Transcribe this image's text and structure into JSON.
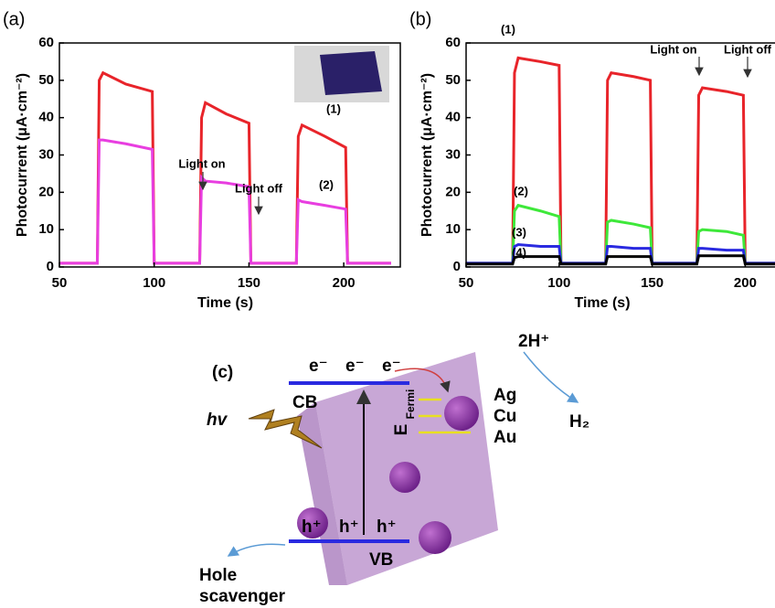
{
  "chart_data": [
    {
      "type": "line",
      "panel_label": "(a)",
      "x_label": "Time (s)",
      "y_label": "Photocurrent (μA·cm⁻²)",
      "xlim": [
        50,
        225
      ],
      "xticks": [
        50,
        100,
        150,
        200
      ],
      "ylim": [
        0,
        60
      ],
      "yticks": [
        0,
        10,
        20,
        30,
        40,
        50,
        60
      ],
      "annotations": [
        "Light on",
        "Light off"
      ],
      "x": [
        50,
        70,
        71,
        73,
        85,
        99,
        100,
        124,
        125,
        127,
        138,
        150,
        151,
        175,
        176,
        178,
        190,
        201,
        202,
        225
      ],
      "series": [
        {
          "name": "(1)",
          "color": "#e8242a",
          "values": [
            1,
            1,
            50,
            52,
            49,
            47,
            1,
            1,
            40,
            44,
            41,
            38.5,
            1,
            1,
            35,
            38,
            35,
            32,
            1,
            1
          ]
        },
        {
          "name": "(2)",
          "color": "#e83ee0",
          "values": [
            1,
            1,
            34,
            34,
            33,
            31.5,
            1,
            1,
            24,
            23,
            22.5,
            21.5,
            1,
            1,
            18,
            17.5,
            16.5,
            15.5,
            1,
            1
          ]
        }
      ]
    },
    {
      "type": "line",
      "panel_label": "(b)",
      "x_label": "Time (s)",
      "y_label": "Photocurrent (μA·cm⁻²)",
      "xlim": [
        50,
        216
      ],
      "xticks": [
        50,
        100,
        150,
        200
      ],
      "ylim": [
        0,
        60
      ],
      "yticks": [
        0,
        10,
        20,
        30,
        40,
        50,
        60
      ],
      "annotations": [
        "Light on",
        "Light off"
      ],
      "x": [
        50,
        75,
        76,
        78,
        90,
        100,
        101,
        125,
        126,
        128,
        140,
        149,
        150,
        174,
        175,
        177,
        190,
        199,
        200,
        216
      ],
      "series": [
        {
          "name": "(1)",
          "color": "#e8242a",
          "values": [
            1,
            1,
            52,
            56,
            55,
            54,
            1,
            1,
            50,
            52,
            51,
            50,
            1,
            1,
            46,
            48,
            47,
            46,
            1,
            1
          ]
        },
        {
          "name": "(2)",
          "color": "#3ee83a",
          "values": [
            1,
            1,
            15,
            16.5,
            15,
            13.5,
            1,
            1,
            12,
            12.5,
            11.5,
            10.5,
            1,
            1,
            9.5,
            10,
            9.5,
            8.5,
            1,
            1
          ]
        },
        {
          "name": "(3)",
          "color": "#2a2ae0",
          "values": [
            1,
            1,
            5.5,
            6,
            5.5,
            5.5,
            1,
            1,
            5.5,
            5.5,
            5,
            5,
            1,
            1,
            5,
            5,
            4.5,
            4.5,
            1,
            1
          ]
        },
        {
          "name": "(4)",
          "color": "#000000",
          "values": [
            0.8,
            0.8,
            2.5,
            2.8,
            2.8,
            2.8,
            0.8,
            0.8,
            2.8,
            2.8,
            2.8,
            2.8,
            0.8,
            0.8,
            3,
            3,
            3,
            3,
            0.8,
            0.8
          ]
        }
      ]
    }
  ],
  "diagram": {
    "label": "(c)",
    "electrons": [
      "e⁻",
      "e⁻",
      "e⁻"
    ],
    "cb": "CB",
    "hv": "hv",
    "fermi_e": "E",
    "fermi_sub": "Fermi",
    "metals": [
      "Ag",
      "Cu",
      "Au"
    ],
    "proton": "2H⁺",
    "hydrogen": "H₂",
    "holes": [
      "h⁺",
      "h⁺",
      "h⁺"
    ],
    "vb": "VB",
    "scavenger": [
      "Hole",
      "scavenger"
    ]
  }
}
